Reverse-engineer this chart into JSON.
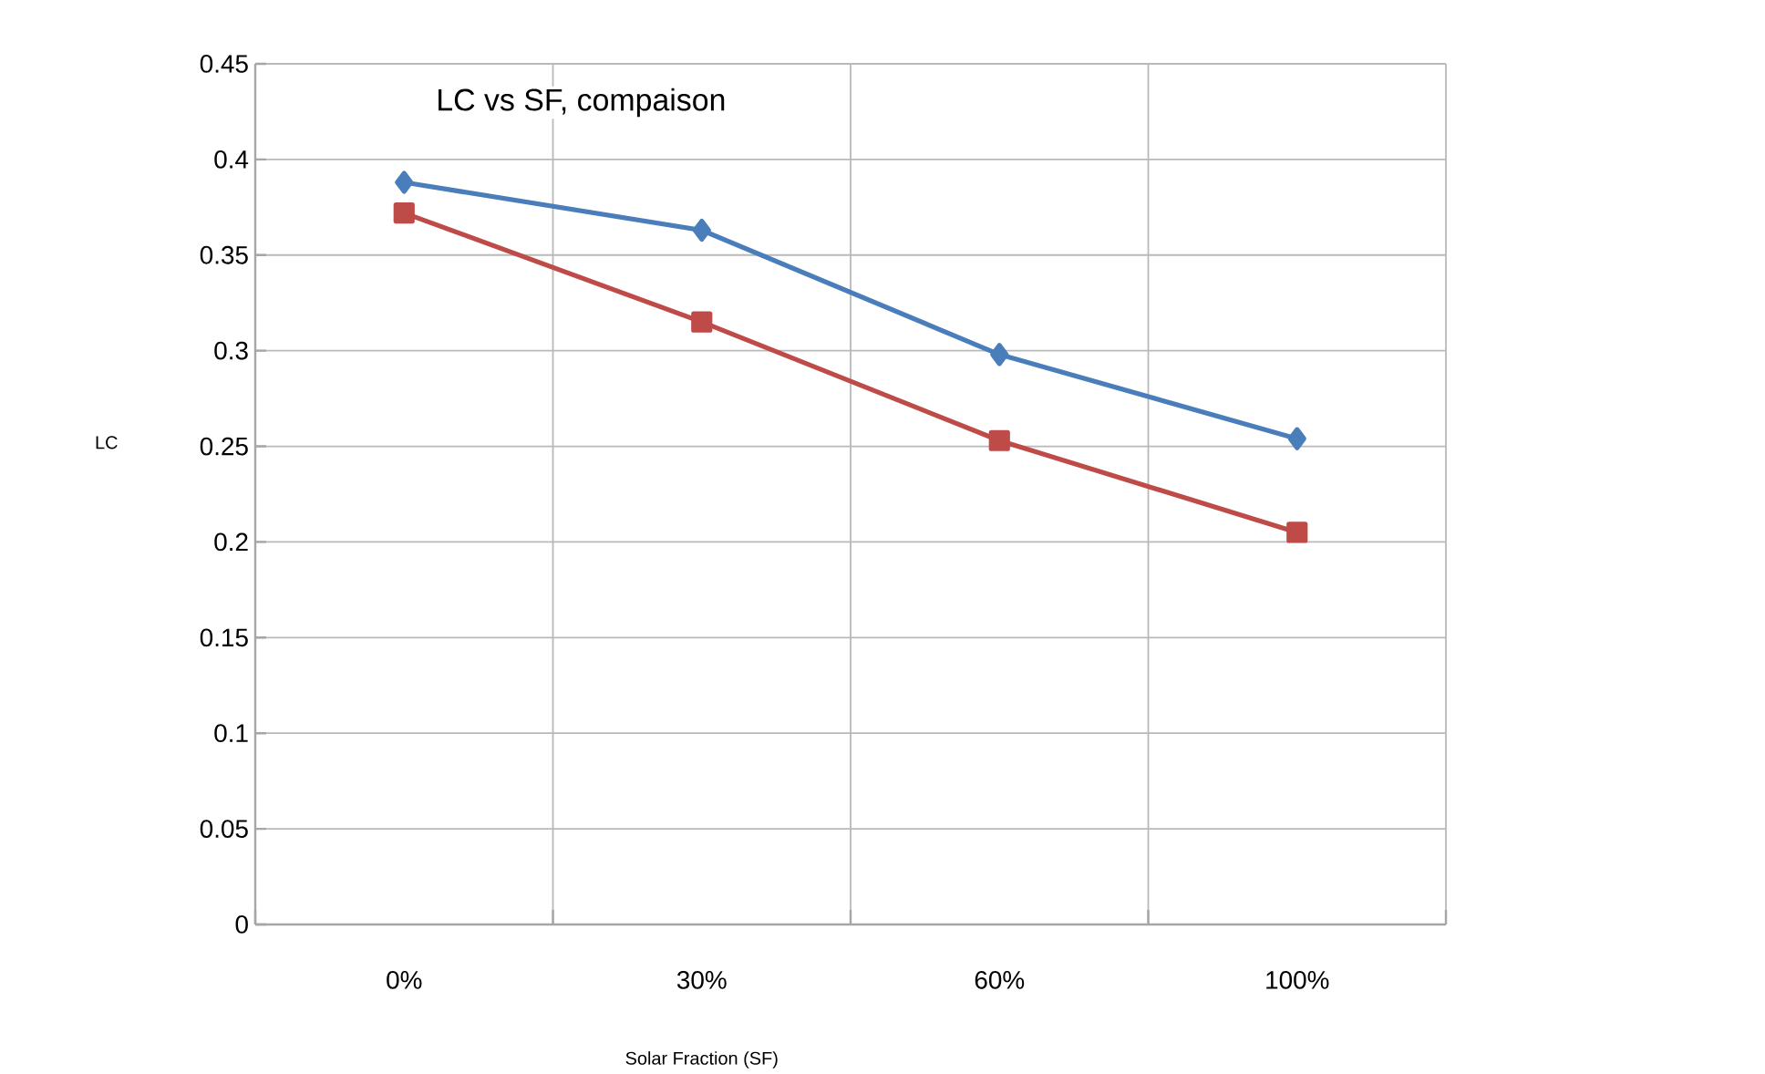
{
  "chart_data": {
    "type": "line",
    "title": "LC vs SF, compaison",
    "xlabel": "Solar Fraction (SF)",
    "ylabel": "LC",
    "categories": [
      "0%",
      "30%",
      "60%",
      "100%"
    ],
    "series": [
      {
        "color": "#4a7ebb",
        "marker": "diamond",
        "values": [
          0.388,
          0.363,
          0.298,
          0.254
        ]
      },
      {
        "color": "#be4b48",
        "marker": "square",
        "values": [
          0.372,
          0.315,
          0.253,
          0.205
        ]
      }
    ],
    "ylim": [
      0,
      0.45
    ],
    "yticks": [
      0,
      0.05,
      0.1,
      0.15,
      0.2,
      0.25,
      0.3,
      0.35,
      0.4,
      0.45
    ],
    "grid": true
  }
}
